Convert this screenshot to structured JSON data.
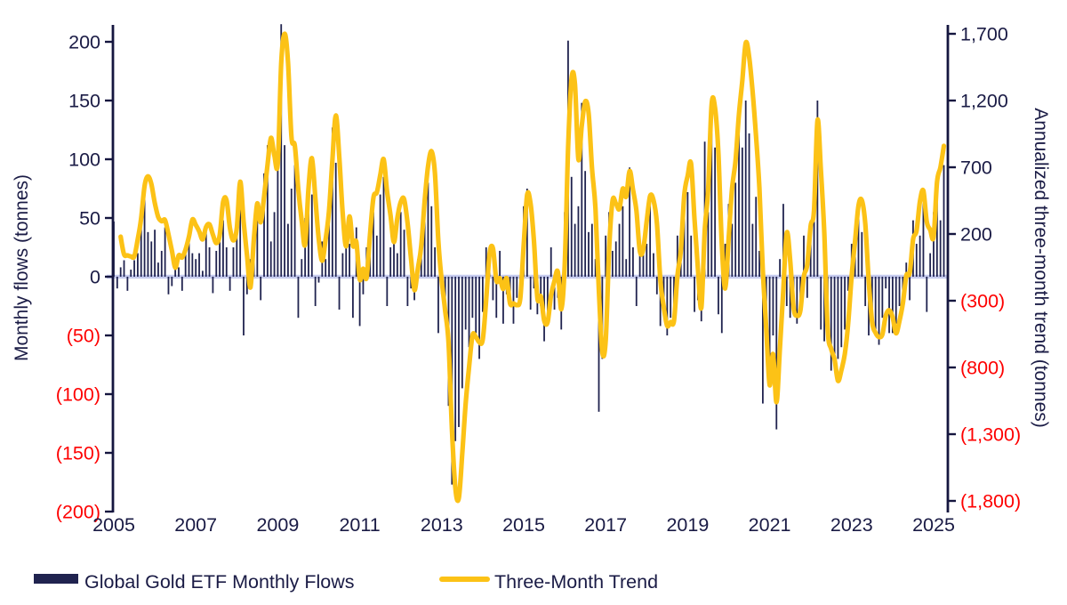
{
  "chart_data": {
    "type": "bar",
    "subtype": "dual-axis bar + line combo, monthly time series",
    "x_axis": {
      "frequency": "monthly",
      "start": "2005-01",
      "end": "2025-04",
      "tick_labels": [
        "2005",
        "2007",
        "2009",
        "2011",
        "2013",
        "2015",
        "2017",
        "2019",
        "2021",
        "2023",
        "2025"
      ]
    },
    "left_axis": {
      "label": "Monthly flows (tonnes)",
      "tick_labels": [
        "200",
        "150",
        "100",
        "50",
        "0",
        "(50)",
        "(100)",
        "(150)",
        "(200)"
      ],
      "tick_values": [
        200,
        150,
        100,
        50,
        0,
        -50,
        -100,
        -150,
        -200
      ],
      "range": [
        -200,
        200
      ]
    },
    "right_axis": {
      "label": "Annualized three-month trend (tonnes)",
      "tick_labels": [
        "1,700",
        "1,200",
        "700",
        "200",
        "(300)",
        "(800)",
        "(1,300)",
        "(1,800)"
      ],
      "tick_values": [
        1700,
        1200,
        700,
        200,
        -300,
        -800,
        -1300,
        -1800
      ],
      "range": [
        -1800,
        1700
      ]
    },
    "series": [
      {
        "name": "Global Gold ETF Monthly Flows",
        "kind": "bar",
        "axis": "left",
        "unit": "tonnes per month",
        "monthly_values_by_year": {
          "2005": [
            47,
            -10,
            8,
            14,
            -12,
            6,
            14,
            20,
            45,
            75,
            38,
            30
          ],
          "2006": [
            40,
            12,
            22,
            42,
            -15,
            -8,
            10,
            8,
            -12,
            25,
            32,
            20
          ],
          "2007": [
            15,
            20,
            5,
            38,
            25,
            -14,
            22,
            40,
            48,
            25,
            -12,
            25
          ],
          "2008": [
            48,
            75,
            -50,
            -15,
            15,
            40,
            52,
            -20,
            88,
            112,
            30,
            55
          ],
          "2009": [
            98,
            215,
            112,
            45,
            75,
            95,
            -35,
            15,
            50,
            72,
            70,
            -25
          ],
          "2010": [
            -5,
            30,
            15,
            48,
            127,
            97,
            -28,
            20,
            35,
            28,
            -35,
            42
          ],
          "2011": [
            -42,
            -15,
            25,
            38,
            55,
            35,
            70,
            85,
            -25,
            25,
            35,
            20
          ],
          "2012": [
            55,
            40,
            -25,
            -10,
            -20,
            15,
            32,
            65,
            80,
            60,
            25,
            -48
          ],
          "2013": [
            -15,
            -30,
            -110,
            -177,
            -140,
            -128,
            -95,
            -45,
            -60,
            -35,
            -48,
            -70
          ],
          "2014": [
            -30,
            25,
            18,
            -20,
            -35,
            22,
            -40,
            -15,
            -25,
            -40,
            -18,
            -12
          ],
          "2015": [
            60,
            75,
            -28,
            -10,
            -32,
            -25,
            -55,
            -35,
            25,
            -28,
            -18,
            -45
          ],
          "2016": [
            55,
            201,
            85,
            45,
            60,
            148,
            90,
            38,
            45,
            15,
            -115,
            -70
          ],
          "2017": [
            35,
            55,
            22,
            30,
            45,
            60,
            15,
            93,
            25,
            -25,
            18,
            28
          ],
          "2018": [
            28,
            65,
            20,
            -15,
            -42,
            -30,
            -50,
            -35,
            -28,
            35,
            12,
            75
          ],
          "2019": [
            72,
            35,
            -30,
            -20,
            -38,
            115,
            55,
            122,
            110,
            -32,
            -48,
            28
          ],
          "2020": [
            62,
            45,
            80,
            148,
            110,
            150,
            122,
            45,
            68,
            22,
            -108,
            -40
          ],
          "2021": [
            -85,
            -50,
            -130,
            15,
            62,
            -25,
            -35,
            -28,
            -40,
            -25,
            35,
            -18
          ],
          "2022": [
            48,
            65,
            150,
            -45,
            -55,
            -30,
            -80,
            -75,
            -70,
            -60,
            -45,
            -12
          ],
          "2023": [
            28,
            20,
            55,
            38,
            -25,
            -50,
            -40,
            -45,
            -58,
            -35,
            -10,
            -48
          ],
          "2024": [
            -48,
            -40,
            -25,
            -15,
            12,
            -20,
            48,
            28,
            35,
            68,
            -30,
            20
          ],
          "2025": [
            55,
            72,
            48,
            95
          ]
        }
      },
      {
        "name": "Three-Month Trend",
        "kind": "line",
        "axis": "right",
        "unit": "tonnes, annualized",
        "derivation": "annualized three-month trend = 4 x (rolling 3-month sum of monthly flows)",
        "values": "derived from monthly flows"
      }
    ],
    "legend_position": "bottom",
    "grid": false,
    "colors": {
      "bar": "#20234f",
      "line": "#fcc216",
      "axis": "#15163f",
      "tick_label_positive": "#1a1b45",
      "tick_label_negative": "#fe0000",
      "zero_baseline": "#c6cbee",
      "background": "#ffffff"
    }
  }
}
